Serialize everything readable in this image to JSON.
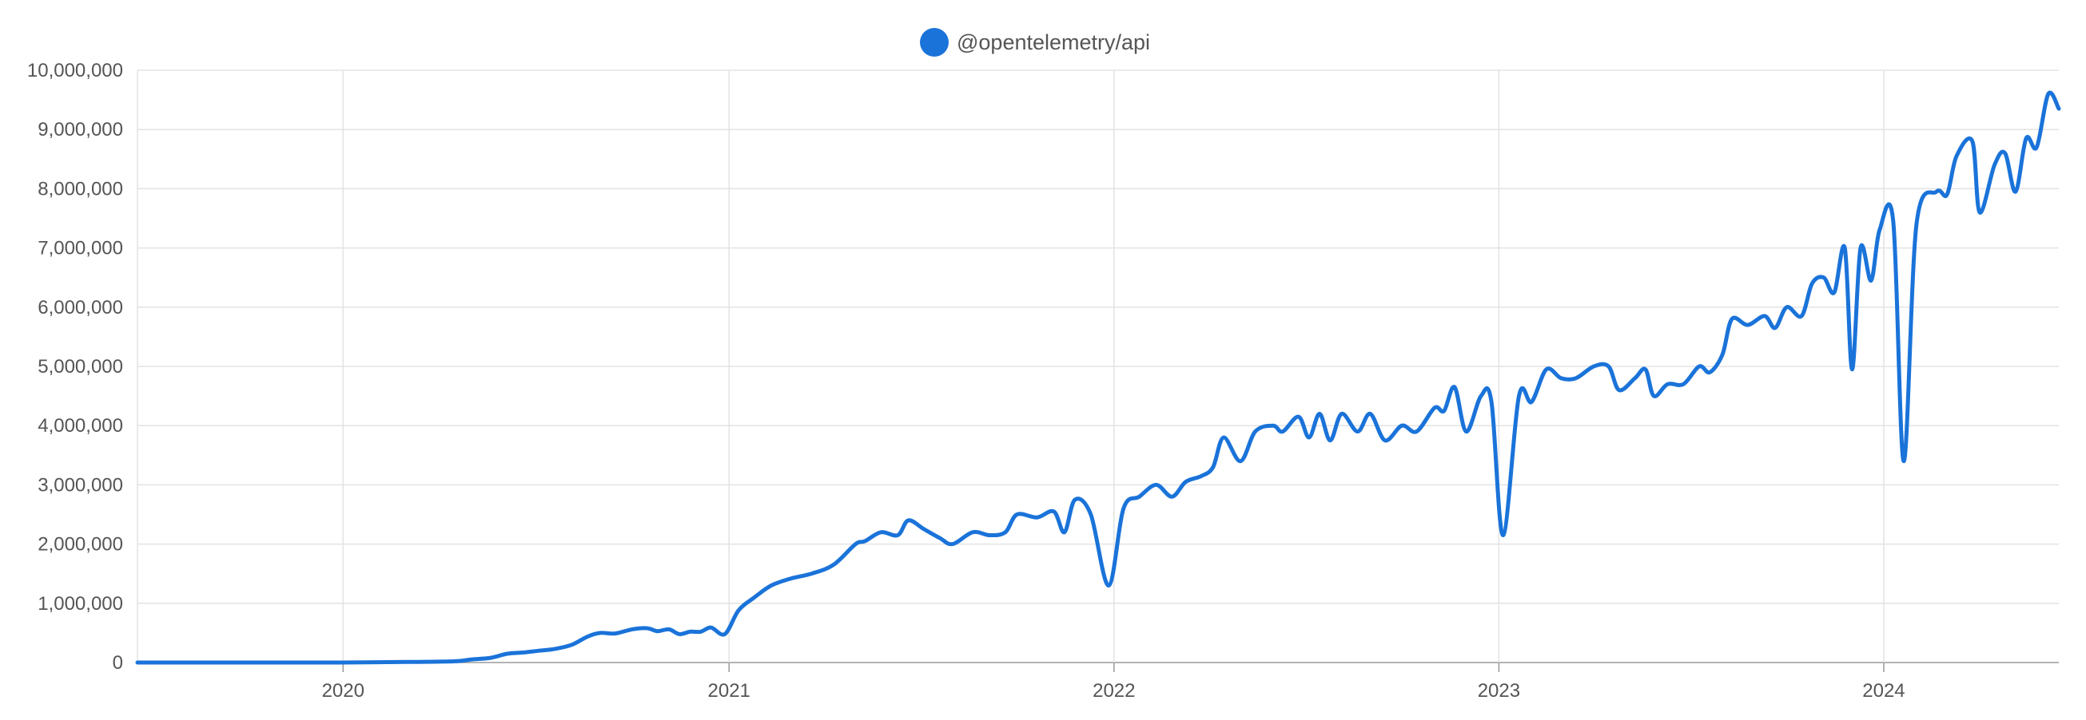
{
  "chart_data": {
    "type": "line",
    "title": "",
    "xlabel": "",
    "ylabel": "",
    "legend": {
      "position": "top-center",
      "entries": [
        {
          "name": "@opentelemetry/api",
          "color": "#1a73d9"
        }
      ]
    },
    "x_tick_labels": [
      "2020",
      "2021",
      "2022",
      "2023",
      "2024"
    ],
    "y_tick_labels": [
      "0",
      "1,000,000",
      "2,000,000",
      "3,000,000",
      "4,000,000",
      "5,000,000",
      "6,000,000",
      "7,000,000",
      "8,000,000",
      "9,000,000",
      "10,000,000"
    ],
    "xlim": [
      "2019-06-20",
      "2024-06-15"
    ],
    "ylim": [
      0,
      10000000
    ],
    "grid": true,
    "series": [
      {
        "name": "@opentelemetry/api",
        "color": "#1a73d9",
        "points": [
          [
            "2019-06-20",
            0
          ],
          [
            "2019-09-01",
            0
          ],
          [
            "2019-12-01",
            0
          ],
          [
            "2020-01-01",
            0
          ],
          [
            "2020-03-01",
            10000
          ],
          [
            "2020-04-15",
            20000
          ],
          [
            "2020-05-01",
            50000
          ],
          [
            "2020-05-20",
            80000
          ],
          [
            "2020-06-05",
            150000
          ],
          [
            "2020-06-20",
            170000
          ],
          [
            "2020-07-05",
            200000
          ],
          [
            "2020-07-20",
            230000
          ],
          [
            "2020-08-05",
            300000
          ],
          [
            "2020-08-20",
            440000
          ],
          [
            "2020-09-01",
            500000
          ],
          [
            "2020-09-15",
            490000
          ],
          [
            "2020-10-01",
            560000
          ],
          [
            "2020-10-15",
            580000
          ],
          [
            "2020-10-25",
            530000
          ],
          [
            "2020-11-05",
            560000
          ],
          [
            "2020-11-15",
            480000
          ],
          [
            "2020-11-25",
            520000
          ],
          [
            "2020-12-05",
            520000
          ],
          [
            "2020-12-15",
            590000
          ],
          [
            "2020-12-28",
            480000
          ],
          [
            "2021-01-10",
            880000
          ],
          [
            "2021-01-25",
            1100000
          ],
          [
            "2021-02-10",
            1300000
          ],
          [
            "2021-03-01",
            1420000
          ],
          [
            "2021-03-20",
            1500000
          ],
          [
            "2021-04-10",
            1650000
          ],
          [
            "2021-05-01",
            2000000
          ],
          [
            "2021-05-10",
            2050000
          ],
          [
            "2021-05-25",
            2200000
          ],
          [
            "2021-06-10",
            2150000
          ],
          [
            "2021-06-20",
            2400000
          ],
          [
            "2021-07-05",
            2250000
          ],
          [
            "2021-07-20",
            2100000
          ],
          [
            "2021-08-01",
            2000000
          ],
          [
            "2021-08-20",
            2200000
          ],
          [
            "2021-09-05",
            2150000
          ],
          [
            "2021-09-20",
            2200000
          ],
          [
            "2021-10-01",
            2500000
          ],
          [
            "2021-10-20",
            2450000
          ],
          [
            "2021-11-05",
            2550000
          ],
          [
            "2021-11-15",
            2200000
          ],
          [
            "2021-11-25",
            2750000
          ],
          [
            "2021-12-10",
            2500000
          ],
          [
            "2021-12-27",
            1300000
          ],
          [
            "2022-01-10",
            2600000
          ],
          [
            "2022-01-25",
            2800000
          ],
          [
            "2022-02-10",
            3000000
          ],
          [
            "2022-02-25",
            2800000
          ],
          [
            "2022-03-10",
            3050000
          ],
          [
            "2022-03-25",
            3150000
          ],
          [
            "2022-04-05",
            3300000
          ],
          [
            "2022-04-15",
            3800000
          ],
          [
            "2022-05-01",
            3400000
          ],
          [
            "2022-05-15",
            3900000
          ],
          [
            "2022-06-01",
            4000000
          ],
          [
            "2022-06-10",
            3900000
          ],
          [
            "2022-06-25",
            4150000
          ],
          [
            "2022-07-05",
            3800000
          ],
          [
            "2022-07-15",
            4200000
          ],
          [
            "2022-07-25",
            3750000
          ],
          [
            "2022-08-05",
            4200000
          ],
          [
            "2022-08-20",
            3900000
          ],
          [
            "2022-09-01",
            4200000
          ],
          [
            "2022-09-15",
            3750000
          ],
          [
            "2022-10-01",
            4000000
          ],
          [
            "2022-10-15",
            3900000
          ],
          [
            "2022-11-01",
            4300000
          ],
          [
            "2022-11-10",
            4250000
          ],
          [
            "2022-11-20",
            4650000
          ],
          [
            "2022-12-01",
            3900000
          ],
          [
            "2022-12-15",
            4500000
          ],
          [
            "2022-12-25",
            4400000
          ],
          [
            "2023-01-05",
            2150000
          ],
          [
            "2023-01-20",
            4500000
          ],
          [
            "2023-02-01",
            4400000
          ],
          [
            "2023-02-15",
            4950000
          ],
          [
            "2023-03-01",
            4800000
          ],
          [
            "2023-03-15",
            4800000
          ],
          [
            "2023-04-01",
            5000000
          ],
          [
            "2023-04-15",
            5000000
          ],
          [
            "2023-04-25",
            4600000
          ],
          [
            "2023-05-10",
            4800000
          ],
          [
            "2023-05-20",
            4950000
          ],
          [
            "2023-05-28",
            4500000
          ],
          [
            "2023-06-10",
            4700000
          ],
          [
            "2023-06-25",
            4700000
          ],
          [
            "2023-07-10",
            5000000
          ],
          [
            "2023-07-20",
            4900000
          ],
          [
            "2023-08-01",
            5200000
          ],
          [
            "2023-08-10",
            5800000
          ],
          [
            "2023-08-25",
            5700000
          ],
          [
            "2023-09-10",
            5850000
          ],
          [
            "2023-09-20",
            5650000
          ],
          [
            "2023-10-01",
            6000000
          ],
          [
            "2023-10-15",
            5850000
          ],
          [
            "2023-10-25",
            6400000
          ],
          [
            "2023-11-05",
            6500000
          ],
          [
            "2023-11-15",
            6250000
          ],
          [
            "2023-11-25",
            7000000
          ],
          [
            "2023-12-02",
            4950000
          ],
          [
            "2023-12-10",
            7000000
          ],
          [
            "2023-12-20",
            6450000
          ],
          [
            "2023-12-28",
            7300000
          ],
          [
            "2024-01-10",
            7450000
          ],
          [
            "2024-01-20",
            3400000
          ],
          [
            "2024-02-01",
            7400000
          ],
          [
            "2024-02-20",
            7950000
          ],
          [
            "2024-03-01",
            7900000
          ],
          [
            "2024-03-10",
            8550000
          ],
          [
            "2024-03-25",
            8800000
          ],
          [
            "2024-04-01",
            7600000
          ],
          [
            "2024-04-15",
            8400000
          ],
          [
            "2024-04-25",
            8600000
          ],
          [
            "2024-05-05",
            7950000
          ],
          [
            "2024-05-15",
            8850000
          ],
          [
            "2024-05-25",
            8700000
          ],
          [
            "2024-06-05",
            9600000
          ],
          [
            "2024-06-15",
            9350000
          ]
        ]
      }
    ]
  }
}
